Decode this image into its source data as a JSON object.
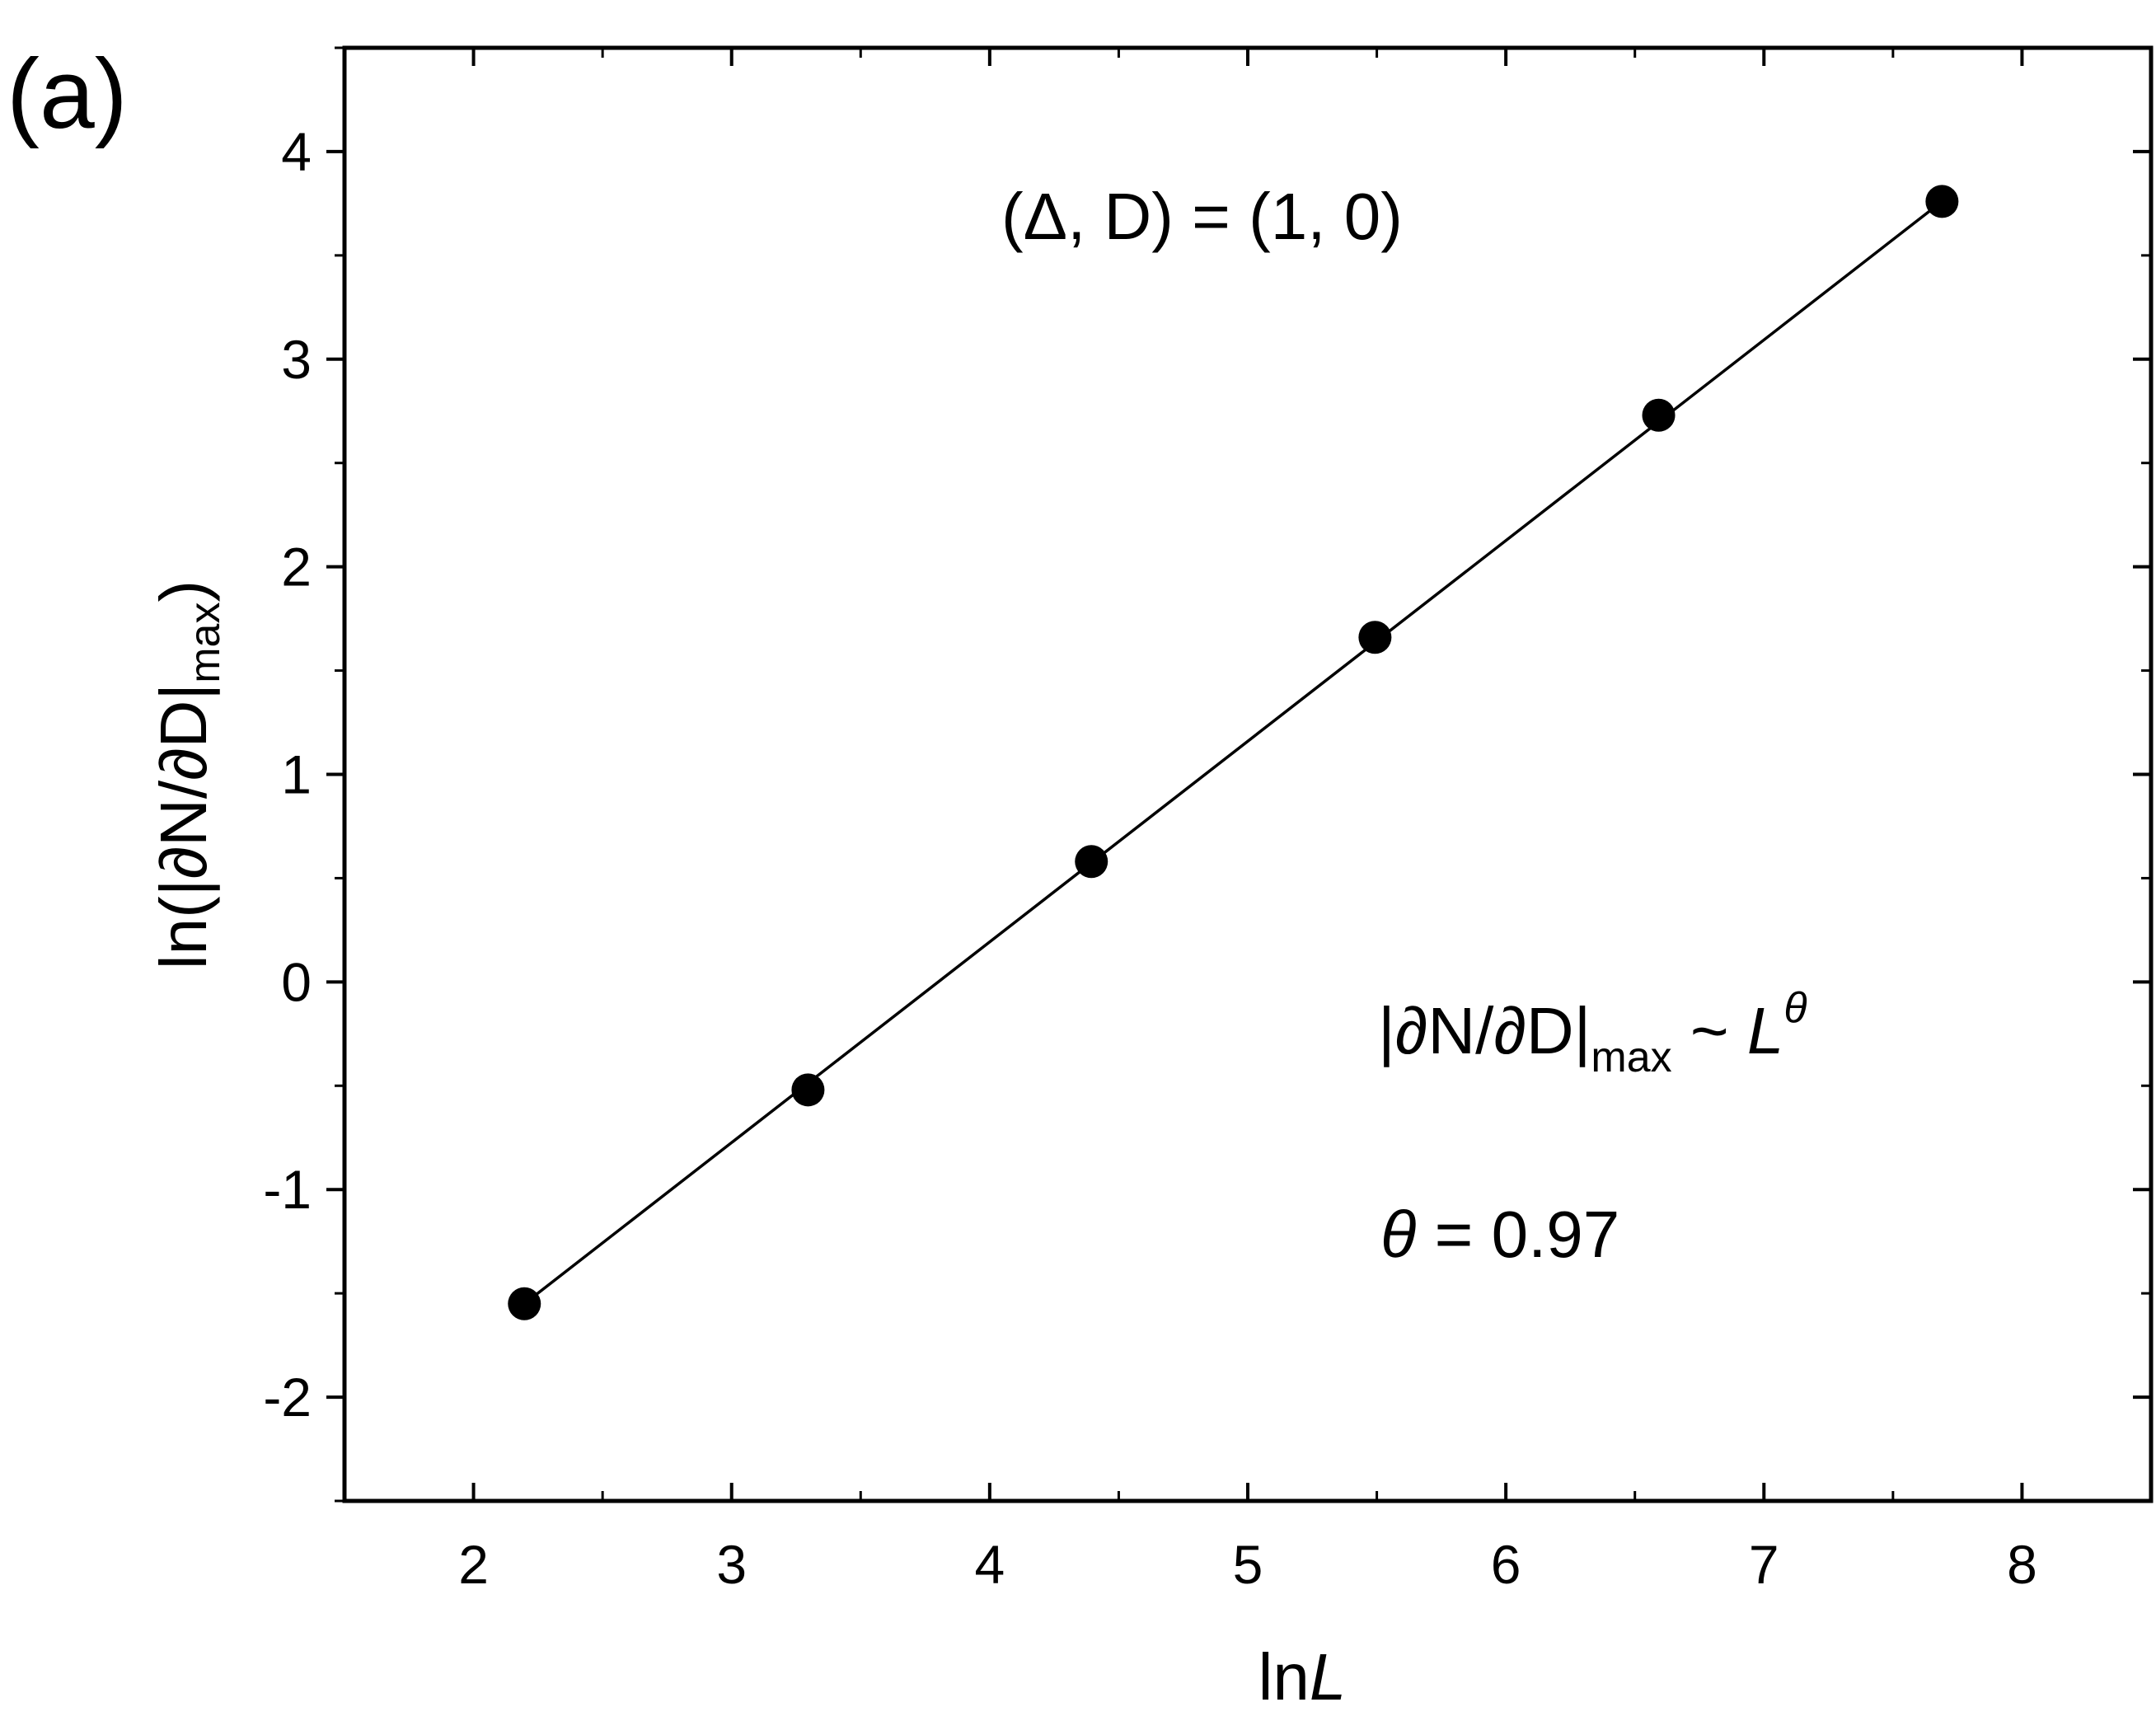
{
  "chart_data": {
    "type": "scatter",
    "panel_label": "(a)",
    "xlabel": {
      "prefix": "ln",
      "italic": "L"
    },
    "ylabel": {
      "main": "ln(|∂N/∂D|",
      "sub": "max",
      "end": ")"
    },
    "xlim": [
      1.5,
      8.5
    ],
    "ylim": [
      -2.5,
      4.5
    ],
    "xticks": [
      2,
      3,
      4,
      5,
      6,
      7,
      8
    ],
    "xtick_labels": [
      "2",
      "3",
      "4",
      "5",
      "6",
      "7",
      "8"
    ],
    "yticks": [
      -2,
      -1,
      0,
      1,
      2,
      3,
      4
    ],
    "ytick_labels": [
      "-2",
      "-1",
      "0",
      "1",
      "2",
      "3",
      "4"
    ],
    "x_minor_step": 0.5,
    "y_minor_step": 0.5,
    "grid": false,
    "series": [
      {
        "x": [
          2.197,
          3.296,
          4.394,
          5.493,
          6.592,
          7.69
        ],
        "y": [
          -1.55,
          -0.52,
          0.58,
          1.66,
          2.73,
          3.76
        ],
        "marker": "filled-circle",
        "color": "#000000"
      }
    ],
    "fit_line": {
      "x": [
        2.197,
        7.69
      ],
      "y": [
        -1.55,
        3.76
      ],
      "color": "#000000"
    },
    "annotations": {
      "params": "(Δ, D) = (1, 0)",
      "scaling": {
        "main": "|∂N/∂D|",
        "sub": "max",
        "tilde": " ~ ",
        "base": "L",
        "sup": "θ"
      },
      "theta": {
        "symbol": "θ",
        "value": " = 0.97"
      }
    }
  }
}
